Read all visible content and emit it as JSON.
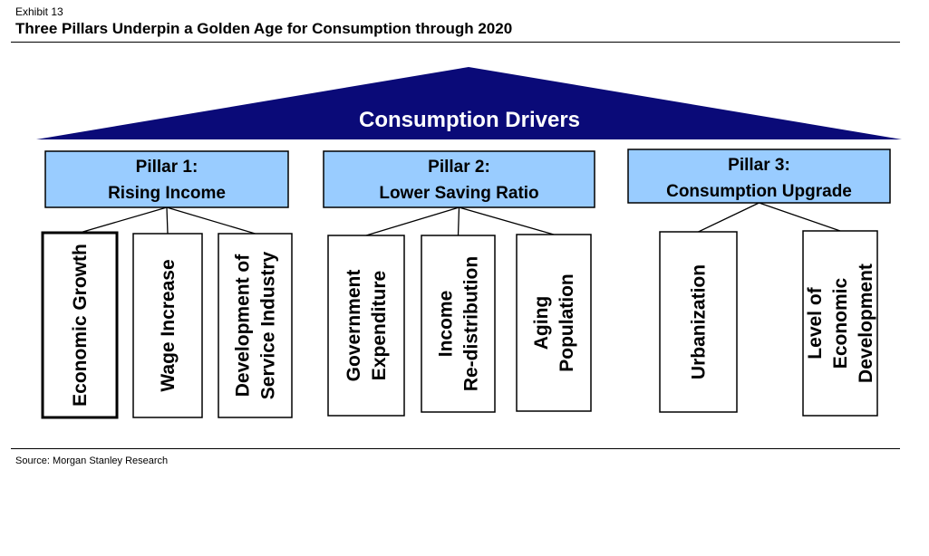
{
  "header": {
    "exhibit": "Exhibit 13",
    "title": "Three Pillars Underpin a Golden Age for Consumption through 2020"
  },
  "roof": {
    "label": "Consumption Drivers",
    "color": "#0a0a78"
  },
  "colors": {
    "pillar_fill": "#99ccff",
    "box_stroke": "#000000"
  },
  "pillars": [
    {
      "line1": "Pillar 1:",
      "line2": "Rising Income",
      "drivers": [
        {
          "lines": [
            "Economic Growth"
          ]
        },
        {
          "lines": [
            "Wage Increase"
          ]
        },
        {
          "lines": [
            "Development of",
            "Service Industry"
          ]
        }
      ]
    },
    {
      "line1": "Pillar 2:",
      "line2": "Lower Saving Ratio",
      "drivers": [
        {
          "lines": [
            "Government",
            "Expenditure"
          ]
        },
        {
          "lines": [
            "Income",
            "Re-distribution"
          ]
        },
        {
          "lines": [
            "Aging",
            "Population"
          ]
        }
      ]
    },
    {
      "line1": "Pillar 3:",
      "line2": "Consumption Upgrade",
      "drivers": [
        {
          "lines": [
            "Urbanization"
          ]
        },
        {
          "lines": [
            "Level of",
            "Economic",
            "Development"
          ]
        }
      ]
    }
  ],
  "footer": {
    "source": "Source: Morgan Stanley Research"
  }
}
